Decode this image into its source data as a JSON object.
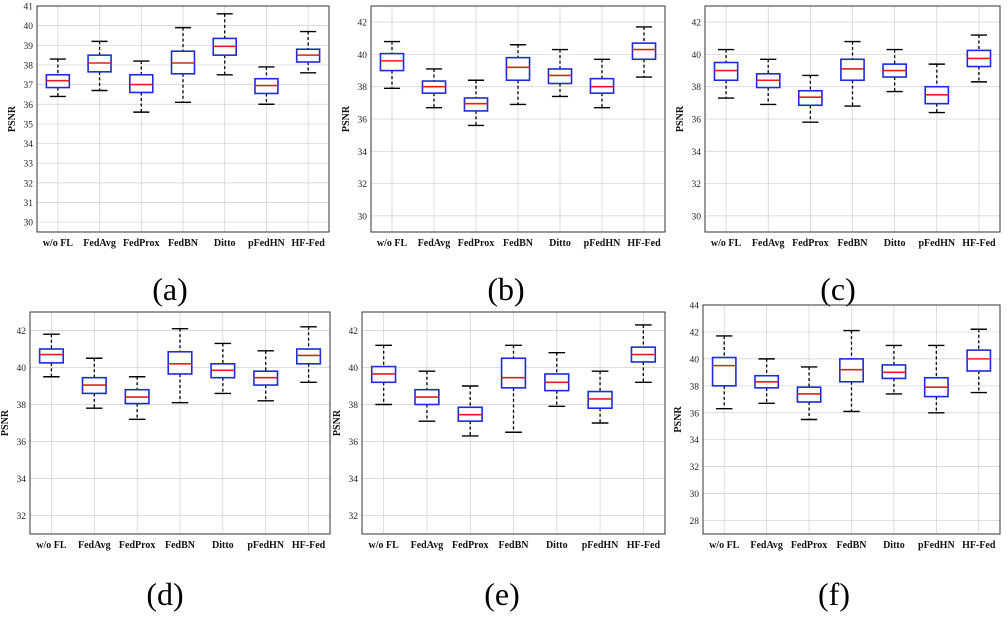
{
  "chart_data": [
    {
      "type": "box",
      "caption": "(a)",
      "ylabel": "PSNR",
      "ylim": [
        29.5,
        41
      ],
      "yticks": [
        30,
        31,
        32,
        33,
        34,
        35,
        36,
        37,
        38,
        39,
        40,
        41
      ],
      "categories": [
        "w/o FL",
        "FedAvg",
        "FedProx",
        "FedBN",
        "Ditto",
        "pFedHN",
        "HF-Fed"
      ],
      "boxes": [
        {
          "min": 36.4,
          "q1": 36.85,
          "median": 37.2,
          "q3": 37.5,
          "max": 38.3
        },
        {
          "min": 36.7,
          "q1": 37.65,
          "median": 38.1,
          "q3": 38.5,
          "max": 39.2
        },
        {
          "min": 35.6,
          "q1": 36.6,
          "median": 37.0,
          "q3": 37.5,
          "max": 38.2
        },
        {
          "min": 36.1,
          "q1": 37.55,
          "median": 38.1,
          "q3": 38.7,
          "max": 39.9
        },
        {
          "min": 37.5,
          "q1": 38.5,
          "median": 38.95,
          "q3": 39.35,
          "max": 40.6
        },
        {
          "min": 36.0,
          "q1": 36.55,
          "median": 36.95,
          "q3": 37.3,
          "max": 37.9
        },
        {
          "min": 37.6,
          "q1": 38.15,
          "median": 38.5,
          "q3": 38.8,
          "max": 39.7
        }
      ]
    },
    {
      "type": "box",
      "caption": "(b)",
      "ylabel": "PSNR",
      "ylim": [
        29,
        43
      ],
      "yticks": [
        30,
        32,
        34,
        36,
        38,
        40,
        42
      ],
      "categories": [
        "w/o FL",
        "FedAvg",
        "FedProx",
        "FedBN",
        "Ditto",
        "pFedHN",
        "HF-Fed"
      ],
      "boxes": [
        {
          "min": 37.9,
          "q1": 39.0,
          "median": 39.6,
          "q3": 40.05,
          "max": 40.8
        },
        {
          "min": 36.7,
          "q1": 37.6,
          "median": 38.0,
          "q3": 38.35,
          "max": 39.1
        },
        {
          "min": 35.6,
          "q1": 36.5,
          "median": 36.95,
          "q3": 37.3,
          "max": 38.4
        },
        {
          "min": 36.9,
          "q1": 38.4,
          "median": 39.2,
          "q3": 39.8,
          "max": 40.6
        },
        {
          "min": 37.4,
          "q1": 38.2,
          "median": 38.7,
          "q3": 39.1,
          "max": 40.3
        },
        {
          "min": 36.7,
          "q1": 37.6,
          "median": 38.0,
          "q3": 38.5,
          "max": 39.7
        },
        {
          "min": 38.6,
          "q1": 39.7,
          "median": 40.3,
          "q3": 40.7,
          "max": 41.7
        }
      ]
    },
    {
      "type": "box",
      "caption": "(c)",
      "ylabel": "PSNR",
      "ylim": [
        29,
        43
      ],
      "yticks": [
        30,
        32,
        34,
        36,
        38,
        40,
        42
      ],
      "categories": [
        "w/o FL",
        "FedAvg",
        "FedProx",
        "FedBN",
        "Ditto",
        "pFedHN",
        "HF-Fed"
      ],
      "boxes": [
        {
          "min": 37.3,
          "q1": 38.4,
          "median": 39.0,
          "q3": 39.5,
          "max": 40.3
        },
        {
          "min": 36.9,
          "q1": 37.95,
          "median": 38.4,
          "q3": 38.8,
          "max": 39.7
        },
        {
          "min": 35.8,
          "q1": 36.85,
          "median": 37.35,
          "q3": 37.75,
          "max": 38.7
        },
        {
          "min": 36.8,
          "q1": 38.4,
          "median": 39.1,
          "q3": 39.7,
          "max": 40.8
        },
        {
          "min": 37.7,
          "q1": 38.6,
          "median": 39.0,
          "q3": 39.4,
          "max": 40.3
        },
        {
          "min": 36.4,
          "q1": 36.95,
          "median": 37.5,
          "q3": 38.0,
          "max": 39.4
        },
        {
          "min": 38.3,
          "q1": 39.25,
          "median": 39.75,
          "q3": 40.25,
          "max": 41.2
        }
      ]
    },
    {
      "type": "box",
      "caption": "(d)",
      "ylabel": "PSNR",
      "ylim": [
        31,
        43
      ],
      "yticks": [
        32,
        34,
        36,
        38,
        40,
        42
      ],
      "categories": [
        "w/o FL",
        "FedAvg",
        "FedProx",
        "FedBN",
        "Ditto",
        "pFedHN",
        "HF-Fed"
      ],
      "boxes": [
        {
          "min": 39.5,
          "q1": 40.25,
          "median": 40.7,
          "q3": 41.0,
          "max": 41.8
        },
        {
          "min": 37.8,
          "q1": 38.6,
          "median": 39.05,
          "q3": 39.45,
          "max": 40.5
        },
        {
          "min": 37.2,
          "q1": 38.05,
          "median": 38.4,
          "q3": 38.8,
          "max": 39.5
        },
        {
          "min": 38.1,
          "q1": 39.65,
          "median": 40.2,
          "q3": 40.85,
          "max": 42.1
        },
        {
          "min": 38.6,
          "q1": 39.45,
          "median": 39.85,
          "q3": 40.2,
          "max": 41.3
        },
        {
          "min": 38.2,
          "q1": 39.05,
          "median": 39.45,
          "q3": 39.8,
          "max": 40.9
        },
        {
          "min": 39.2,
          "q1": 40.2,
          "median": 40.65,
          "q3": 41.0,
          "max": 42.2
        }
      ]
    },
    {
      "type": "box",
      "caption": "(e)",
      "ylabel": "PSNR",
      "ylim": [
        31,
        43
      ],
      "yticks": [
        32,
        34,
        36,
        38,
        40,
        42
      ],
      "categories": [
        "w/o FL",
        "FedAvg",
        "FedProx",
        "FedBN",
        "Ditto",
        "pFedHN",
        "HF-Fed"
      ],
      "boxes": [
        {
          "min": 38.0,
          "q1": 39.2,
          "median": 39.65,
          "q3": 40.05,
          "max": 41.2
        },
        {
          "min": 37.1,
          "q1": 38.0,
          "median": 38.4,
          "q3": 38.8,
          "max": 39.8
        },
        {
          "min": 36.3,
          "q1": 37.1,
          "median": 37.45,
          "q3": 37.85,
          "max": 39.0
        },
        {
          "min": 36.5,
          "q1": 38.9,
          "median": 39.45,
          "q3": 40.5,
          "max": 41.2
        },
        {
          "min": 37.9,
          "q1": 38.75,
          "median": 39.2,
          "q3": 39.65,
          "max": 40.8
        },
        {
          "min": 37.0,
          "q1": 37.8,
          "median": 38.3,
          "q3": 38.7,
          "max": 39.8
        },
        {
          "min": 39.2,
          "q1": 40.3,
          "median": 40.7,
          "q3": 41.1,
          "max": 42.3
        }
      ]
    },
    {
      "type": "box",
      "caption": "(f)",
      "ylabel": "PSNR",
      "ylim": [
        27,
        44
      ],
      "yticks": [
        28,
        30,
        32,
        34,
        36,
        38,
        40,
        42,
        44
      ],
      "categories": [
        "w/o FL",
        "FedAvg",
        "FedProx",
        "FedBN",
        "Ditto",
        "pFedHN",
        "HF-Fed"
      ],
      "boxes": [
        {
          "min": 36.3,
          "q1": 38.0,
          "median": 39.5,
          "q3": 40.1,
          "max": 41.7
        },
        {
          "min": 36.7,
          "q1": 37.85,
          "median": 38.3,
          "q3": 38.75,
          "max": 40.0
        },
        {
          "min": 35.5,
          "q1": 36.8,
          "median": 37.4,
          "q3": 37.9,
          "max": 39.4
        },
        {
          "min": 36.1,
          "q1": 38.3,
          "median": 39.2,
          "q3": 40.0,
          "max": 42.1
        },
        {
          "min": 37.4,
          "q1": 38.55,
          "median": 39.0,
          "q3": 39.55,
          "max": 41.0
        },
        {
          "min": 36.0,
          "q1": 37.2,
          "median": 37.9,
          "q3": 38.6,
          "max": 41.0
        },
        {
          "min": 37.5,
          "q1": 39.1,
          "median": 40.0,
          "q3": 40.65,
          "max": 42.2
        }
      ]
    }
  ],
  "colors": {
    "box": "#1f2bd6",
    "median": "#e02020",
    "whisker": "#000000",
    "grid": "#d0d0d0",
    "axis": "#333333"
  }
}
